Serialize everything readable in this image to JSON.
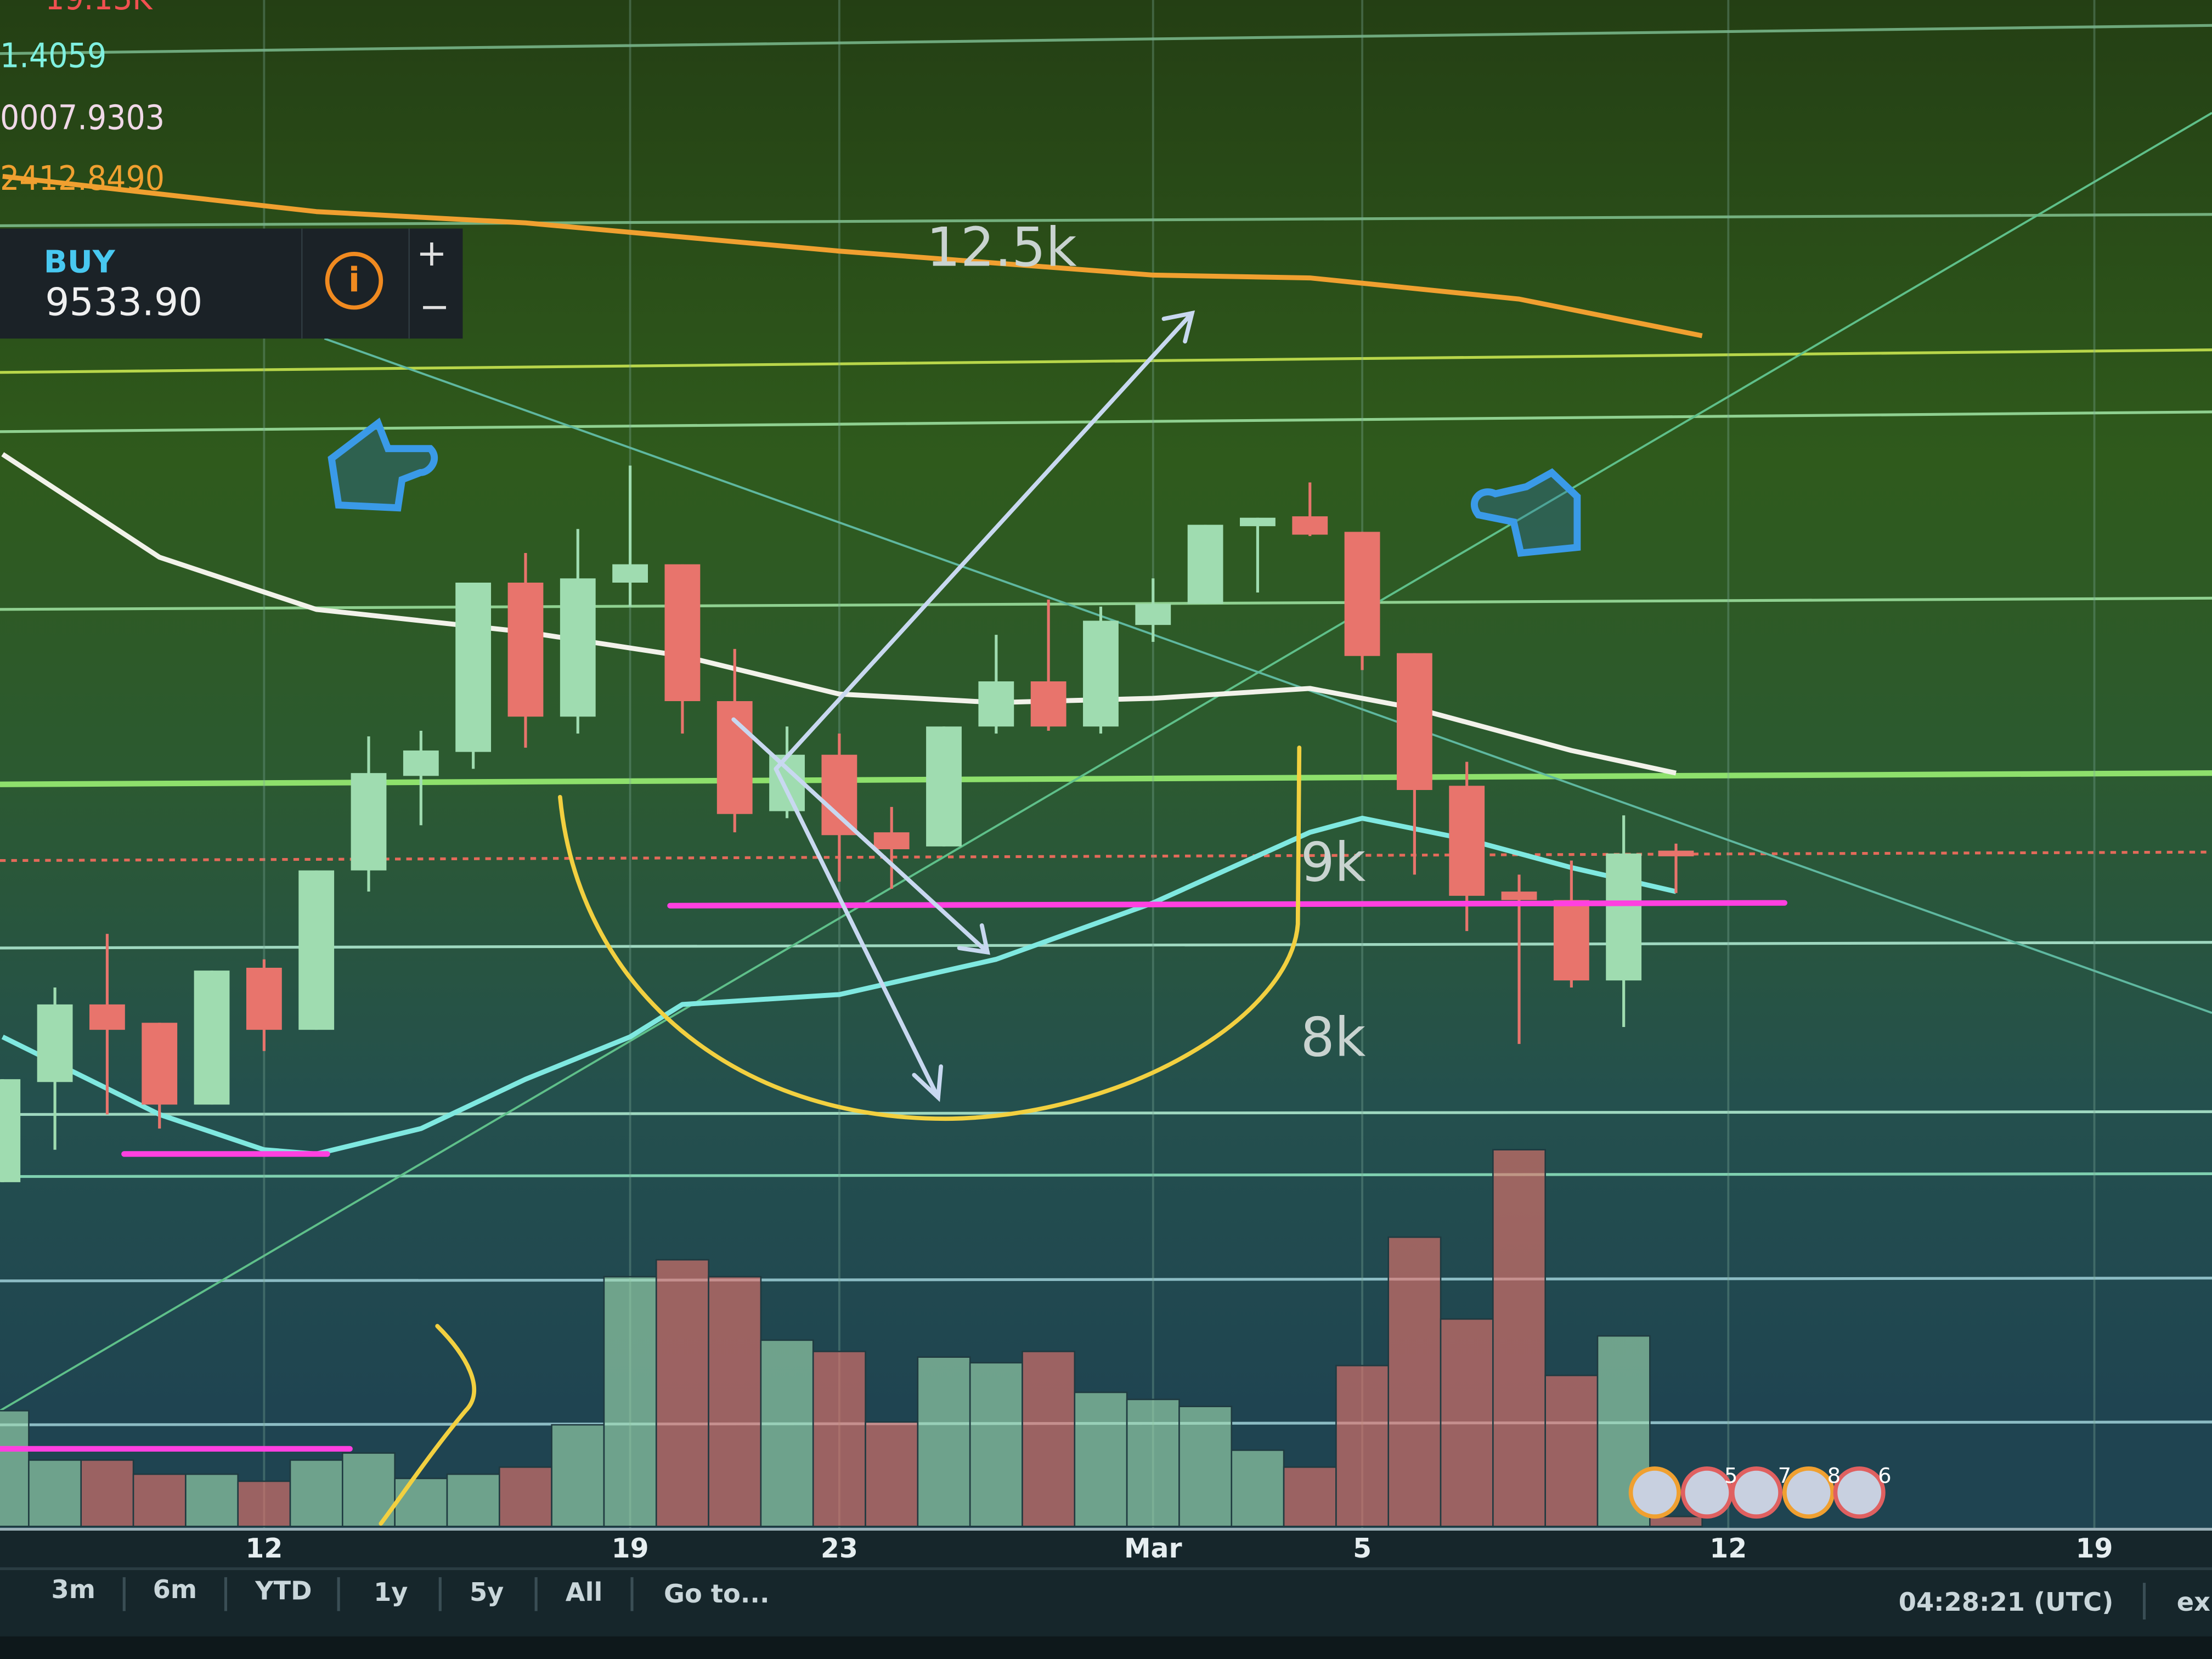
{
  "indicators": {
    "top": "19.13K",
    "line_1": "1.4059",
    "line_2": "0007.9303",
    "line_3": "2412.8490"
  },
  "order_panel": {
    "side": "BUY",
    "price": "9533.90",
    "zoom_in": "+",
    "zoom_out": "−"
  },
  "annotations": [
    "12.5k",
    "9k",
    "8k"
  ],
  "event_badges": [
    "5",
    "7",
    "8",
    "6"
  ],
  "range_buttons": [
    "3m",
    "6m",
    "YTD",
    "1y",
    "5y",
    "All",
    "Go to..."
  ],
  "clock": "04:28:21 (UTC)",
  "cut_text": "ex",
  "chart_data": {
    "type": "candlestick",
    "up_color": "#9fdcb0",
    "down_color": "#e8746c",
    "open": [
      7192,
      7760,
      8200,
      8096,
      7632,
      8408,
      8056,
      8960,
      9496,
      9632,
      10592,
      9832,
      10592,
      10696,
      9920,
      9296,
      9616,
      9176,
      9096,
      9776,
      10032,
      9776,
      10352,
      10472,
      10912,
      10968,
      10880,
      10192,
      9440,
      8840,
      8792,
      8336,
      9072
    ],
    "high": [
      7776,
      8296,
      8600,
      8096,
      8392,
      8456,
      8960,
      9720,
      9752,
      10592,
      10760,
      10896,
      11256,
      10696,
      10216,
      9776,
      9736,
      9320,
      9776,
      10296,
      10496,
      10456,
      10616,
      10920,
      10960,
      11160,
      10880,
      10192,
      9576,
      8936,
      9016,
      9272,
      9112
    ],
    "low": [
      7192,
      7376,
      7576,
      7496,
      7632,
      7936,
      8056,
      8840,
      9216,
      9536,
      9656,
      9736,
      10456,
      9736,
      9176,
      9256,
      8896,
      8856,
      9096,
      9736,
      9752,
      9736,
      10256,
      10472,
      10536,
      10856,
      10096,
      8936,
      8616,
      7976,
      8296,
      8072,
      8832
    ],
    "close": [
      7776,
      8200,
      8056,
      7632,
      8392,
      8056,
      8960,
      9512,
      9640,
      10592,
      9832,
      10616,
      10696,
      9920,
      9280,
      9616,
      9160,
      9080,
      9776,
      10032,
      9776,
      10376,
      10472,
      10920,
      10960,
      10864,
      10176,
      9416,
      8816,
      8792,
      8336,
      9056,
      9040
    ],
    "volume": [
      82,
      47,
      47,
      37,
      37,
      32,
      47,
      52,
      34,
      37,
      42,
      72,
      177,
      189,
      177,
      132,
      124,
      74,
      120,
      116,
      124,
      95,
      90,
      85,
      54,
      42,
      114,
      205,
      147,
      267,
      107,
      135,
      7
    ],
    "vlim": [
      0,
      290
    ],
    "ylim": [
      5208,
      13896
    ],
    "xlim": [
      -0.05,
      42.25
    ],
    "xticks": [
      {
        "value": 5,
        "label": "12"
      },
      {
        "value": 12,
        "label": "19"
      },
      {
        "value": 16,
        "label": "23"
      },
      {
        "value": 22,
        "label": "Mar"
      },
      {
        "value": 26,
        "label": "5"
      },
      {
        "value": 33,
        "label": "12"
      },
      {
        "value": 40,
        "label": "19"
      }
    ],
    "grid": true,
    "overlays": [
      {
        "color": "#f0a030",
        "x": [
          0,
          6,
          10,
          16,
          22,
          25,
          29,
          32.5
        ],
        "values": [
          12896,
          12696,
          12632,
          12472,
          12336,
          12320,
          12200,
          11992
        ]
      },
      {
        "color": "#f2f2ea",
        "x": [
          0,
          3,
          6,
          10,
          13,
          16,
          19,
          22,
          25,
          27,
          30,
          32
        ],
        "values": [
          11320,
          10736,
          10440,
          10312,
          10176,
          9960,
          9912,
          9936,
          9992,
          9880,
          9640,
          9512
        ]
      },
      {
        "color": "#7fe8e0",
        "x": [
          0,
          3,
          5,
          6,
          8,
          10,
          12,
          13,
          16,
          19,
          22,
          25,
          26,
          28,
          30,
          32
        ],
        "values": [
          8016,
          7576,
          7376,
          7352,
          7496,
          7776,
          8016,
          8200,
          8256,
          8456,
          8776,
          9176,
          9256,
          9136,
          8976,
          8840
        ]
      }
    ]
  }
}
